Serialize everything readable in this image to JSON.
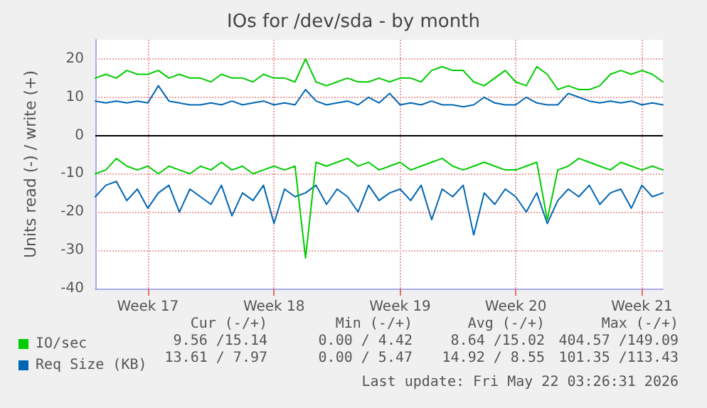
{
  "chart_data": {
    "type": "line",
    "title": "IOs for /dev/sda - by month",
    "ylabel": "Units read (-) / write (+)",
    "categories": [
      null,
      null,
      null,
      null,
      null,
      "Week 17",
      null,
      null,
      null,
      null,
      null,
      null,
      null,
      null,
      null,
      null,
      null,
      "Week 18",
      null,
      null,
      null,
      null,
      null,
      null,
      null,
      null,
      null,
      null,
      null,
      "Week 19",
      null,
      null,
      null,
      null,
      null,
      null,
      null,
      null,
      null,
      null,
      "Week 20",
      null,
      null,
      null,
      null,
      null,
      null,
      null,
      null,
      null,
      null,
      null,
      "Week 21",
      null,
      null
    ],
    "ylim": [
      -40,
      25
    ],
    "yticks": [
      -40,
      -30,
      -20,
      -10,
      0,
      10,
      20
    ],
    "grid": true,
    "legend": "bottom left",
    "marker": "none",
    "line_style": "solid",
    "ref_lines": [
      {
        "axis": "y",
        "value": 0,
        "color": "#000000"
      }
    ],
    "series": [
      {
        "name": "Req Size (KB)",
        "color": "#0066b3",
        "values": [
          9,
          8.5,
          9,
          8.5,
          9,
          8.5,
          13,
          9,
          8.5,
          8,
          8,
          8.5,
          8,
          9,
          8,
          8.5,
          9,
          8,
          8.5,
          8,
          12,
          9,
          8,
          8.5,
          9,
          8,
          10,
          8.5,
          11,
          8,
          8.5,
          8,
          9,
          8,
          8,
          7.5,
          8,
          10,
          8.5,
          8,
          8,
          10,
          8.5,
          8,
          8,
          11,
          10,
          9,
          8.5,
          9,
          8.5,
          9,
          8,
          8.5,
          8
        ]
      },
      {
        "color": "#0066b3",
        "values": [
          -16,
          -13,
          -12,
          -17,
          -14,
          -19,
          -15,
          -13,
          -20,
          -14,
          -16,
          -18,
          -13,
          -21,
          -15,
          -17,
          -13,
          -23,
          -14,
          -16,
          -15,
          -13,
          -18,
          -14,
          -16,
          -20,
          -13,
          -17,
          -15,
          -14,
          -17,
          -13,
          -22,
          -14,
          -16,
          -13,
          -26,
          -15,
          -18,
          -14,
          -16,
          -20,
          -15,
          -23,
          -17,
          -14,
          -16,
          -13,
          -18,
          -15,
          -14,
          -19,
          -13,
          -16,
          -15
        ]
      },
      {
        "name": "IO/sec",
        "color": "#00cc00",
        "values": [
          15,
          16,
          15,
          17,
          16,
          16,
          17,
          15,
          16,
          15,
          15,
          14,
          16,
          15,
          15,
          14,
          16,
          15,
          15,
          14,
          20,
          14,
          13,
          14,
          15,
          14,
          14,
          15,
          14,
          15,
          15,
          14,
          17,
          18,
          17,
          17,
          14,
          13,
          15,
          17,
          14,
          13,
          18,
          16,
          12,
          13,
          12,
          12,
          13,
          16,
          17,
          16,
          17,
          16,
          14
        ]
      },
      {
        "color": "#00cc00",
        "values": [
          -10,
          -9,
          -6,
          -8,
          -9,
          -8,
          -10,
          -8,
          -9,
          -10,
          -8,
          -9,
          -7,
          -9,
          -8,
          -10,
          -9,
          -8,
          -9,
          -8,
          -32,
          -7,
          -8,
          -7,
          -6,
          -8,
          -7,
          -9,
          -8,
          -7,
          -9,
          -8,
          -7,
          -6,
          -8,
          -9,
          -8,
          -7,
          -8,
          -9,
          -9,
          -8,
          -7,
          -22,
          -9,
          -8,
          -6,
          -7,
          -8,
          -9,
          -7,
          -8,
          -9,
          -8,
          -9
        ]
      }
    ],
    "annotations": [
      "Cur (-/+)",
      "Min (-/+)",
      "Avg (-/+)",
      "Max (-/+)",
      "9.56 /15.14",
      "0.00 / 4.42",
      "8.64 /15.02",
      "404.57 /149.09",
      "13.61 / 7.97",
      "0.00 / 5.47",
      "14.92 / 8.55",
      "101.35 /113.43",
      "Last update: Fri May 22 03:26:31 2026"
    ]
  }
}
